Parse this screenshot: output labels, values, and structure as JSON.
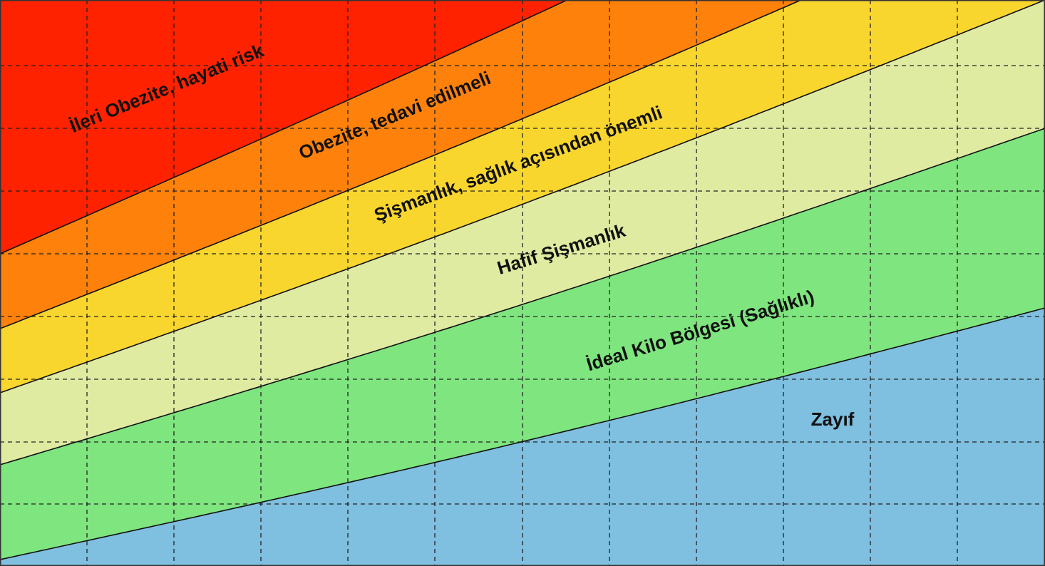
{
  "chart_data": {
    "type": "area",
    "grid": true,
    "bands": [
      {
        "label": "Zayıf",
        "color": "#7fbfdf"
      },
      {
        "label": "İdeal Kilo Bölgesi (Sağlıklı)",
        "color": "#7fe57f"
      },
      {
        "label": "Hafif Şişmanlık",
        "color": "#e0eba2"
      },
      {
        "label": "Şişmanlık,  sağlık açısından önemli",
        "color": "#f8d62e"
      },
      {
        "label": "Obezite, tedavi edilmeli",
        "color": "#fd810b"
      },
      {
        "label": "İleri Obezite, hayati risk",
        "color": "#ff2200"
      }
    ]
  }
}
